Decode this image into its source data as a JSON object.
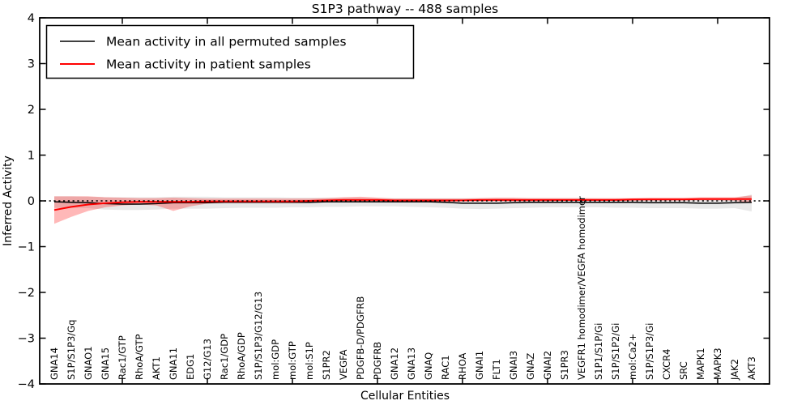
{
  "title": "S1P3 pathway -- 488 samples",
  "axes": {
    "xlabel": "Cellular Entities",
    "ylabel": "Inferred Activity",
    "ytick_labels": [
      "4",
      "3",
      "2",
      "1",
      "0",
      "−1",
      "−2",
      "−3",
      "−4"
    ]
  },
  "legend": {
    "entries": [
      {
        "label": "Mean activity in all permuted samples",
        "color": "#000000"
      },
      {
        "label": "Mean activity in patient samples",
        "color": "#ff0000"
      }
    ]
  },
  "colors": {
    "permuted_line": "#000000",
    "patient_line": "#ff0000",
    "permuted_band": "#808080",
    "patient_band": "#ff0000",
    "zero_line": "#000000",
    "spine": "#000000",
    "background": "#ffffff"
  },
  "chart_data": {
    "type": "line",
    "title": "S1P3 pathway -- 488 samples",
    "xlabel": "Cellular Entities",
    "ylabel": "Inferred Activity",
    "ylim": [
      -4,
      4
    ],
    "yticks": [
      4,
      3,
      2,
      1,
      0,
      -1,
      -2,
      -3,
      -4
    ],
    "x_tick_positions": [
      5,
      10,
      15,
      20,
      25,
      30,
      35,
      40
    ],
    "grid": false,
    "zero_line": true,
    "legend_position": "upper left",
    "categories": [
      "GNA14",
      "S1P/S1P3/Gq",
      "GNAO1",
      "GNA15",
      "Rac1/GTP",
      "RhoA/GTP",
      "AKT1",
      "GNA11",
      "EDG1",
      "G12/G13",
      "Rac1/GDP",
      "RhoA/GDP",
      "S1P/S1P3/G12/G13",
      "mol:GDP",
      "mol:GTP",
      "mol:S1P",
      "S1PR2",
      "VEGFA",
      "PDGFB-D/PDGFRB",
      "PDGFRB",
      "GNA12",
      "GNA13",
      "GNAQ",
      "RAC1",
      "RHOA",
      "GNAI1",
      "FLT1",
      "GNAI3",
      "GNAZ",
      "GNAI2",
      "S1PR3",
      "VEGFR1 homodimer/VEGFA homodimer",
      "S1P1/S1P/Gi",
      "S1P/S1P2/Gi",
      "mol:Ca2+",
      "S1P/S1P3/Gi",
      "CXCR4",
      "SRC",
      "MAPK1",
      "MAPK3",
      "JAK2",
      "AKT3"
    ],
    "series": [
      {
        "name": "Mean activity in all permuted samples",
        "color": "#000000",
        "line_width": 1.5,
        "band_opacity": 0.18,
        "values": [
          -0.02,
          -0.03,
          -0.04,
          -0.06,
          -0.07,
          -0.07,
          -0.06,
          -0.04,
          -0.04,
          -0.04,
          -0.03,
          -0.03,
          -0.03,
          -0.03,
          -0.03,
          -0.03,
          -0.02,
          -0.02,
          -0.02,
          -0.02,
          -0.02,
          -0.02,
          -0.02,
          -0.03,
          -0.05,
          -0.05,
          -0.05,
          -0.04,
          -0.03,
          -0.03,
          -0.03,
          -0.03,
          -0.03,
          -0.03,
          -0.03,
          -0.04,
          -0.04,
          -0.04,
          -0.05,
          -0.05,
          -0.04,
          -0.03
        ],
        "band_upper": [
          0.1,
          0.1,
          0.09,
          0.08,
          0.08,
          0.08,
          0.08,
          0.09,
          0.09,
          0.09,
          0.08,
          0.08,
          0.08,
          0.08,
          0.07,
          0.07,
          0.07,
          0.07,
          0.07,
          0.06,
          0.06,
          0.06,
          0.06,
          0.06,
          0.06,
          0.06,
          0.06,
          0.06,
          0.06,
          0.06,
          0.06,
          0.06,
          0.05,
          0.05,
          0.05,
          0.05,
          0.05,
          0.05,
          0.05,
          0.05,
          0.06,
          0.14
        ],
        "band_lower": [
          -0.15,
          -0.15,
          -0.16,
          -0.19,
          -0.2,
          -0.2,
          -0.19,
          -0.17,
          -0.17,
          -0.17,
          -0.16,
          -0.15,
          -0.15,
          -0.15,
          -0.14,
          -0.14,
          -0.13,
          -0.13,
          -0.12,
          -0.12,
          -0.12,
          -0.13,
          -0.14,
          -0.15,
          -0.17,
          -0.18,
          -0.17,
          -0.16,
          -0.15,
          -0.14,
          -0.14,
          -0.14,
          -0.14,
          -0.15,
          -0.15,
          -0.16,
          -0.16,
          -0.16,
          -0.17,
          -0.17,
          -0.16,
          -0.23
        ]
      },
      {
        "name": "Mean activity in patient samples",
        "color": "#ff0000",
        "line_width": 2,
        "band_opacity": 0.28,
        "values": [
          -0.2,
          -0.13,
          -0.08,
          -0.05,
          -0.03,
          -0.02,
          -0.02,
          -0.02,
          -0.02,
          -0.01,
          -0.01,
          -0.01,
          -0.01,
          -0.01,
          -0.01,
          0.0,
          0.01,
          0.02,
          0.02,
          0.02,
          0.01,
          0.01,
          0.01,
          0.01,
          0.01,
          0.02,
          0.02,
          0.02,
          0.02,
          0.02,
          0.02,
          0.02,
          0.02,
          0.02,
          0.03,
          0.03,
          0.03,
          0.03,
          0.04,
          0.04,
          0.04,
          0.04
        ],
        "band_upper": [
          0.1,
          0.1,
          0.1,
          0.08,
          0.07,
          0.06,
          0.06,
          0.07,
          0.06,
          0.05,
          0.05,
          0.05,
          0.05,
          0.05,
          0.05,
          0.05,
          0.06,
          0.08,
          0.09,
          0.07,
          0.05,
          0.05,
          0.05,
          0.05,
          0.05,
          0.06,
          0.07,
          0.07,
          0.06,
          0.06,
          0.06,
          0.06,
          0.06,
          0.06,
          0.06,
          0.07,
          0.07,
          0.07,
          0.08,
          0.08,
          0.08,
          0.12
        ],
        "band_lower": [
          -0.5,
          -0.35,
          -0.22,
          -0.14,
          -0.1,
          -0.08,
          -0.1,
          -0.22,
          -0.12,
          -0.06,
          -0.04,
          -0.04,
          -0.04,
          -0.04,
          -0.04,
          -0.03,
          -0.03,
          -0.02,
          -0.02,
          -0.02,
          -0.02,
          -0.02,
          -0.02,
          -0.02,
          -0.01,
          -0.01,
          -0.01,
          -0.01,
          -0.01,
          -0.01,
          0.0,
          0.0,
          0.0,
          0.0,
          0.0,
          0.01,
          0.01,
          0.01,
          0.01,
          0.01,
          0.0,
          -0.05
        ]
      }
    ]
  }
}
